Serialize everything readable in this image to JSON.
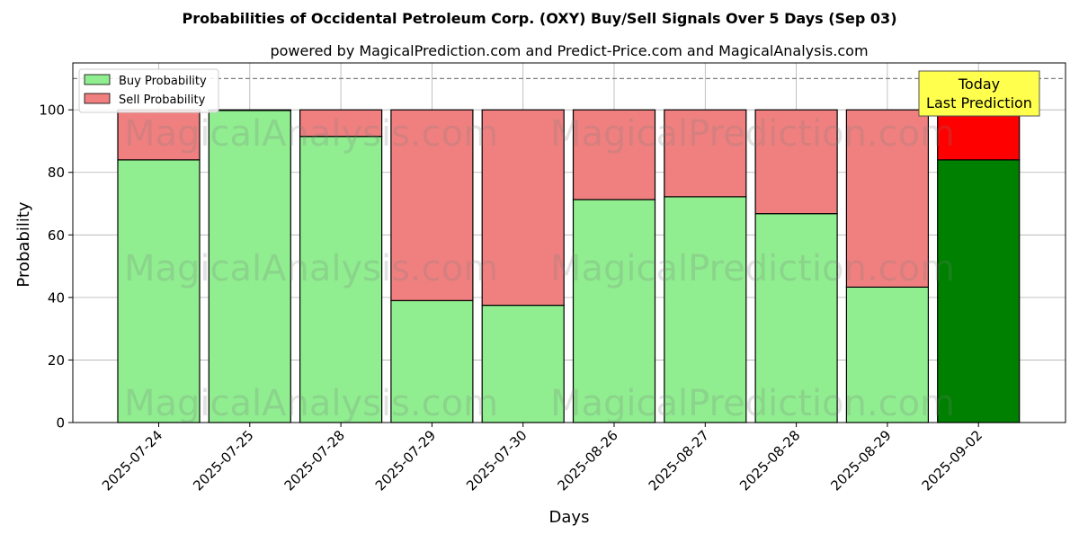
{
  "chart_data": {
    "type": "bar",
    "stacked": true,
    "title": "Probabilities of Occidental Petroleum Corp. (OXY) Buy/Sell Signals Over 5 Days (Sep 03)",
    "subtitle": "powered by MagicalPrediction.com and Predict-Price.com and MagicalAnalysis.com",
    "xlabel": "Days",
    "ylabel": "Probability",
    "ylim": [
      0,
      115
    ],
    "yticks": [
      0,
      20,
      40,
      60,
      80,
      100
    ],
    "reference_line": 110,
    "grid": true,
    "legend_position": "top-left",
    "categories": [
      "2025-07-24",
      "2025-07-25",
      "2025-07-28",
      "2025-07-29",
      "2025-07-30",
      "2025-08-26",
      "2025-08-27",
      "2025-08-28",
      "2025-08-29",
      "2025-09-02"
    ],
    "series": [
      {
        "name": "Buy Probability",
        "color": "#90ee90",
        "highlight_color": "#008000",
        "values": [
          84.0,
          99.8,
          91.5,
          39.0,
          37.5,
          71.3,
          72.2,
          66.8,
          43.3,
          84.0
        ]
      },
      {
        "name": "Sell Probability",
        "color": "#f08080",
        "highlight_color": "#ff0000",
        "values": [
          16.0,
          0.2,
          8.5,
          61.0,
          62.5,
          28.7,
          27.8,
          33.2,
          56.7,
          16.0
        ]
      }
    ],
    "highlight_index": 9,
    "annotation": {
      "line1": "Today",
      "line2": "Last Prediction",
      "background": "#ffff4d"
    },
    "watermarks": [
      "MagicalAnalysis.com",
      "MagicalPrediction.com"
    ]
  }
}
